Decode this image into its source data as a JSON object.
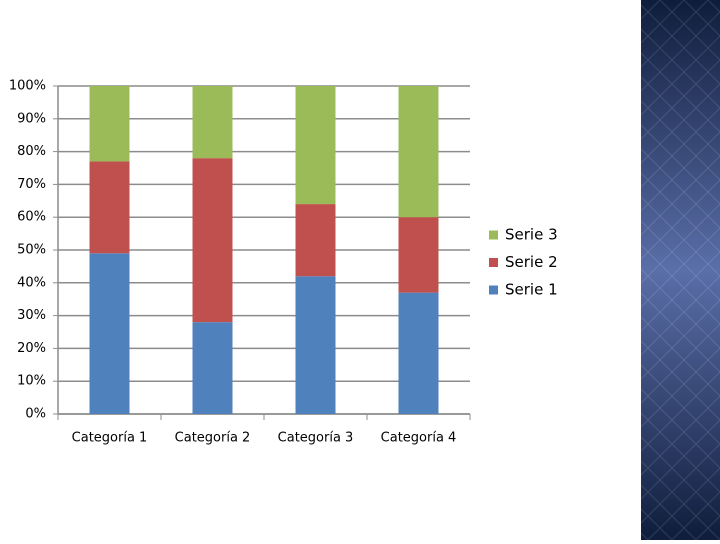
{
  "chart_data": {
    "type": "stacked_bar_100",
    "categories": [
      "Categoría 1",
      "Categoría 2",
      "Categoría 3",
      "Categoría 4"
    ],
    "series": [
      {
        "name": "Serie 1",
        "color": "#4f81bd",
        "values": [
          49,
          28,
          42,
          37
        ]
      },
      {
        "name": "Serie 2",
        "color": "#c0504d",
        "values": [
          28,
          50,
          22,
          23
        ]
      },
      {
        "name": "Serie 3",
        "color": "#9bbb59",
        "values": [
          23,
          22,
          36,
          40
        ]
      }
    ],
    "ylim": [
      0,
      100
    ],
    "yticks": [
      {
        "value": 0,
        "label": "0%"
      },
      {
        "value": 10,
        "label": "10%"
      },
      {
        "value": 20,
        "label": "20%"
      },
      {
        "value": 30,
        "label": "30%"
      },
      {
        "value": 40,
        "label": "40%"
      },
      {
        "value": 50,
        "label": "50%"
      },
      {
        "value": 60,
        "label": "60%"
      },
      {
        "value": 70,
        "label": "70%"
      },
      {
        "value": 80,
        "label": "80%"
      },
      {
        "value": 90,
        "label": "90%"
      },
      {
        "value": 100,
        "label": "100%"
      }
    ],
    "grid": true,
    "legend": "right"
  }
}
